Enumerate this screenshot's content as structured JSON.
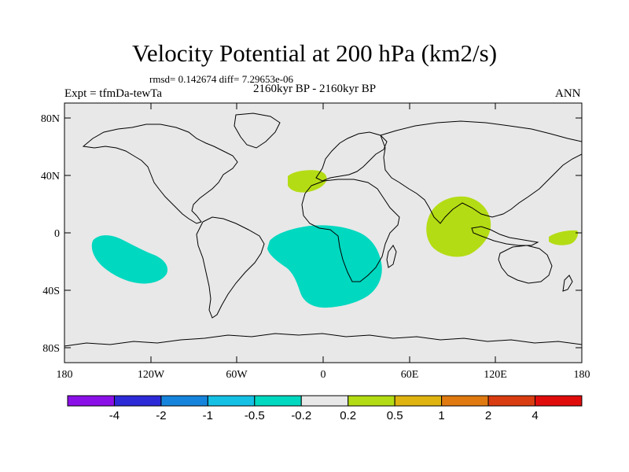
{
  "plot": {
    "title": "Velocity Potential at 200 hPa (km2/s)",
    "stats": "rmsd= 0.142674  diff= 7.29653e-06",
    "period": "2160kyr BP - 2160kyr BP",
    "experiment": "Expt = tfmDa-tewTa",
    "season": "ANN"
  },
  "axes": {
    "lon_labels": [
      "180",
      "120W",
      "60W",
      "0",
      "60E",
      "120E",
      "180"
    ],
    "lat_labels": [
      "80N",
      "40N",
      "0",
      "40S",
      "80S"
    ]
  },
  "colorbar": {
    "levels": [
      "-4",
      "-2",
      "-1",
      "-0.5",
      "-0.2",
      "0.2",
      "0.5",
      "1",
      "2",
      "4"
    ],
    "colors": [
      "#8b10e8",
      "#2d2ad8",
      "#1684dc",
      "#14c0e4",
      "#00d8c0",
      "#e8e8e8",
      "#b4dc14",
      "#e0b410",
      "#e07a10",
      "#d83c10",
      "#e00c0c"
    ]
  },
  "map": {
    "background_color": "#e8e8e8",
    "positive_fill": "#b4dc14",
    "negative_fill": "#00d8c0"
  }
}
